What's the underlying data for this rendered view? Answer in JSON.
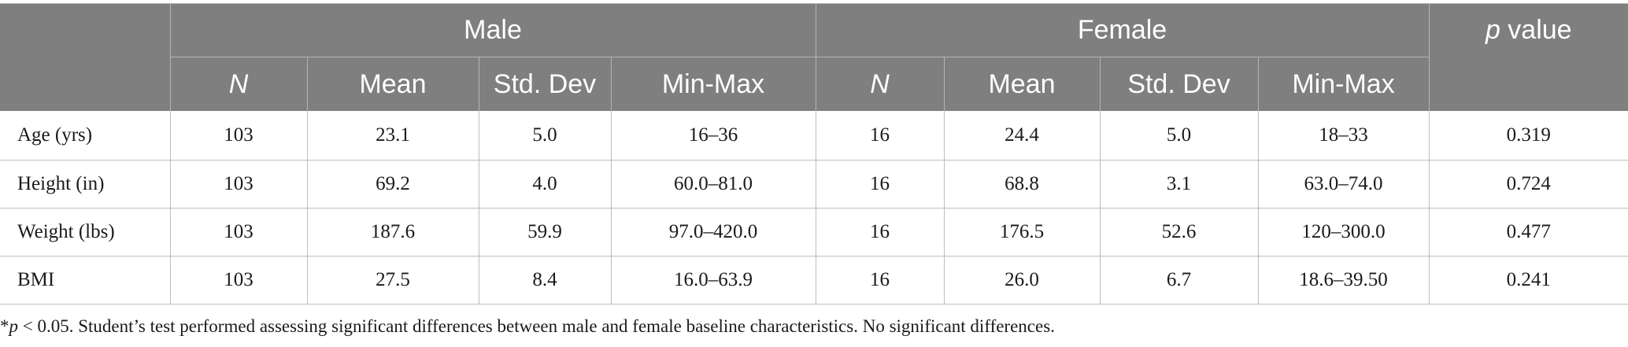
{
  "table": {
    "groups": [
      "Male",
      "Female"
    ],
    "pvalue_header": {
      "p": "p",
      "rest": " value"
    },
    "subheaders": [
      "N",
      "Mean",
      "Std. Dev",
      "Min-Max",
      "N",
      "Mean",
      "Std. Dev",
      "Min-Max"
    ],
    "rows": [
      {
        "label": "Age (yrs)",
        "cells": [
          "103",
          "23.1",
          "5.0",
          "16–36",
          "16",
          "24.4",
          "5.0",
          "18–33"
        ],
        "p": "0.319"
      },
      {
        "label": "Height (in)",
        "cells": [
          "103",
          "69.2",
          "4.0",
          "60.0–81.0",
          "16",
          "68.8",
          "3.1",
          "63.0–74.0"
        ],
        "p": "0.724"
      },
      {
        "label": "Weight (lbs)",
        "cells": [
          "103",
          "187.6",
          "59.9",
          "97.0–420.0",
          "16",
          "176.5",
          "52.6",
          "120–300.0"
        ],
        "p": "0.477"
      },
      {
        "label": "BMI",
        "cells": [
          "103",
          "27.5",
          "8.4",
          "16.0–63.9",
          "16",
          "26.0",
          "6.7",
          "18.6–39.50"
        ],
        "p": "0.241"
      }
    ]
  },
  "footnote": {
    "star": "*",
    "p": "p",
    "text": " < 0.05. Student’s test performed assessing significant differences between male and female baseline characteristics. No significant differences."
  }
}
